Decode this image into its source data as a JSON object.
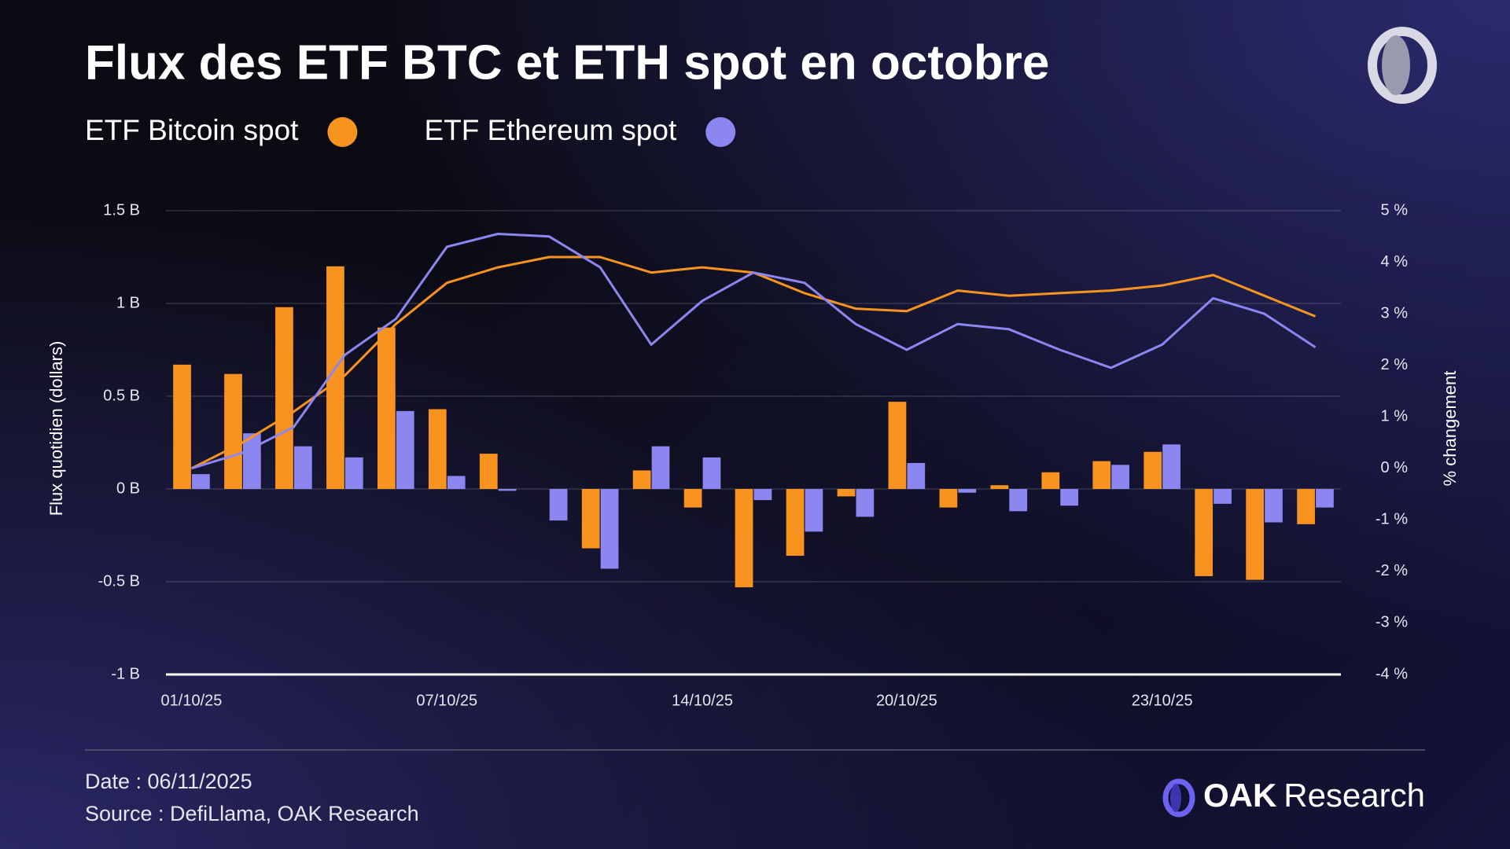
{
  "chart_data": {
    "type": "bar-line",
    "title": "Flux des ETF BTC et ETH spot en octobre",
    "y_label": "Flux quotidien (dollars)",
    "y2_label": "% changement",
    "categories": [
      "01/10/25",
      null,
      null,
      null,
      null,
      "07/10/25",
      null,
      null,
      null,
      null,
      "14/10/25",
      null,
      null,
      null,
      "20/10/25",
      null,
      null,
      null,
      null,
      "23/10/25",
      null,
      null,
      null
    ],
    "series": [
      {
        "name": "ETF Bitcoin spot",
        "color": "#f7931e",
        "values": [
          0.67,
          0.62,
          0.98,
          1.2,
          0.87,
          0.43,
          0.19,
          0,
          -0.32,
          0.1,
          -0.1,
          -0.53,
          -0.36,
          -0.04,
          0.47,
          -0.1,
          0.02,
          0.09,
          0.15,
          0.2,
          -0.47,
          -0.49,
          -0.19
        ]
      },
      {
        "name": "ETF Ethereum spot",
        "color": "#8c87f0",
        "values": [
          0.08,
          0.3,
          0.23,
          0.17,
          0.42,
          0.07,
          -0.01,
          -0.17,
          -0.43,
          0.23,
          0.17,
          -0.06,
          -0.23,
          -0.15,
          0.14,
          -0.02,
          -0.12,
          -0.09,
          0.13,
          0.24,
          -0.08,
          -0.18,
          -0.1
        ]
      }
    ],
    "line_series": [
      {
        "color": "#f7931e",
        "axis": "y2",
        "values": [
          0,
          0.5,
          1.1,
          1.8,
          2.8,
          3.6,
          3.9,
          4.1,
          4.1,
          3.8,
          3.9,
          3.8,
          3.4,
          3.1,
          3.05,
          3.45,
          3.35,
          3.4,
          3.45,
          3.55,
          3.75,
          3.35,
          2.95
        ]
      },
      {
        "color": "#8c87f0",
        "axis": "y2",
        "values": [
          0,
          0.3,
          0.8,
          2.2,
          2.9,
          4.3,
          4.55,
          4.5,
          3.9,
          2.4,
          3.25,
          3.8,
          3.6,
          2.8,
          2.3,
          2.8,
          2.7,
          2.3,
          1.95,
          2.4,
          3.3,
          3.0,
          2.35
        ]
      }
    ],
    "ylim": [
      -1,
      1.5
    ],
    "yticks": [
      {
        "value": -1,
        "label": "-1 B"
      },
      {
        "value": -0.5,
        "label": "-0.5 B"
      },
      {
        "value": 0,
        "label": "0 B"
      },
      {
        "value": 0.5,
        "label": "0.5 B"
      },
      {
        "value": 1,
        "label": "1 B"
      },
      {
        "value": 1.5,
        "label": "1.5 B"
      }
    ],
    "y2lim": [
      -4,
      5
    ],
    "y2ticks": [
      {
        "value": -4,
        "label": "-4 %"
      },
      {
        "value": -3,
        "label": "-3 %"
      },
      {
        "value": -2,
        "label": "-2 %"
      },
      {
        "value": -1,
        "label": "-1 %"
      },
      {
        "value": 0,
        "label": "0 %"
      },
      {
        "value": 1,
        "label": "1 %"
      },
      {
        "value": 2,
        "label": "2 %"
      },
      {
        "value": 3,
        "label": "3 %"
      },
      {
        "value": 4,
        "label": "4 %"
      },
      {
        "value": 5,
        "label": "5 %"
      }
    ],
    "grid": true
  },
  "footer": {
    "date": "Date : 06/11/2025",
    "source": "Source : DefiLlama, OAK Research",
    "brand_name": "OAK",
    "brand_suffix": "Research"
  }
}
